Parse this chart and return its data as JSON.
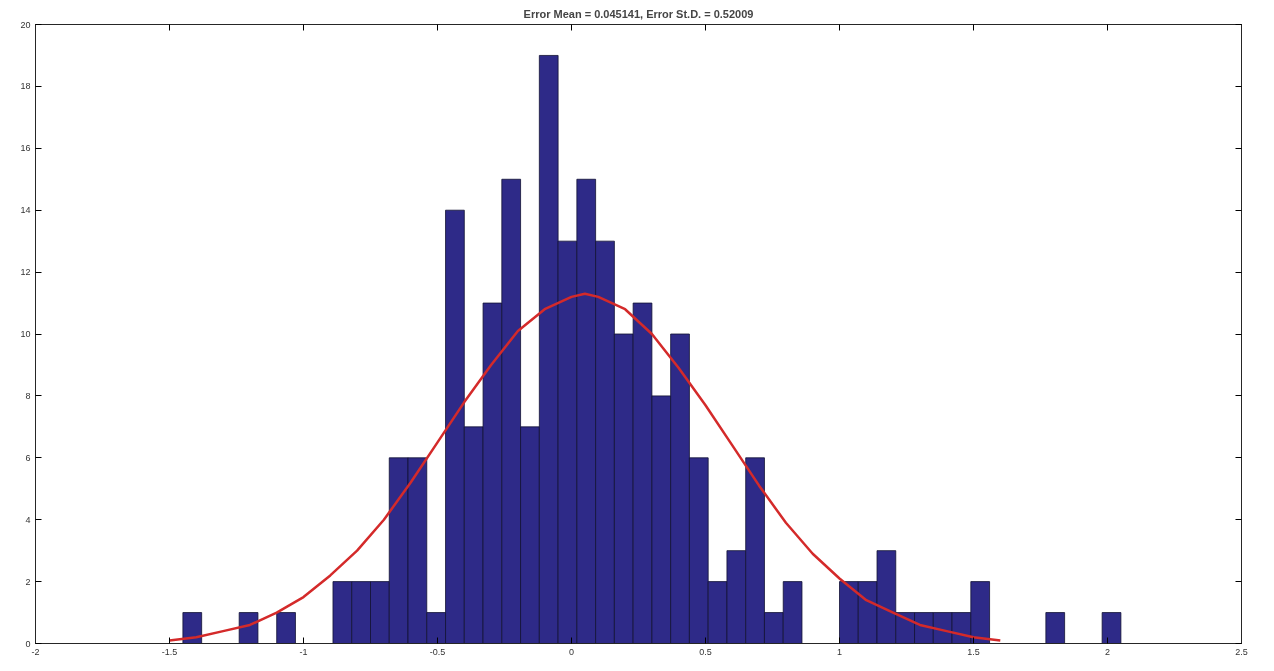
{
  "chart_data": {
    "type": "histogram",
    "title": "Error Mean = 0.045141, Error St.D. = 0.52009",
    "bins": [
      -1.45,
      -1.38,
      -1.31,
      -1.24,
      -1.17,
      -1.1,
      -1.03,
      -0.96,
      -0.89,
      -0.82,
      -0.75,
      -0.68,
      -0.61,
      -0.54,
      -0.47,
      -0.4,
      -0.33,
      -0.26,
      -0.19,
      -0.12,
      -0.05,
      0.02,
      0.09,
      0.16,
      0.23,
      0.3,
      0.37,
      0.44,
      0.51,
      0.58,
      0.65,
      0.72,
      0.79,
      0.86,
      0.93,
      1.0,
      1.07,
      1.14,
      1.21,
      1.28,
      1.35,
      1.42,
      1.49,
      1.56,
      1.63,
      1.7,
      1.77,
      1.84,
      1.91,
      1.98,
      2.05
    ],
    "series": [
      {
        "color": "#2e2a88",
        "values": [
          1,
          0,
          0,
          1,
          0,
          1,
          0,
          0,
          2,
          2,
          2,
          6,
          6,
          1,
          14,
          7,
          11,
          15,
          7,
          19,
          13,
          15,
          13,
          10,
          11,
          8,
          10,
          6,
          2,
          3,
          6,
          1,
          2,
          0,
          0,
          2,
          2,
          3,
          1,
          1,
          1,
          1,
          2,
          0,
          0,
          0,
          1,
          0,
          0,
          1
        ]
      },
      {
        "type": "line",
        "color": "#d42a2a",
        "x": [
          -1.5,
          -1.4,
          -1.3,
          -1.2,
          -1.1,
          -1.0,
          -0.9,
          -0.8,
          -0.7,
          -0.6,
          -0.5,
          -0.4,
          -0.3,
          -0.2,
          -0.1,
          0.0,
          0.05,
          0.1,
          0.2,
          0.3,
          0.4,
          0.5,
          0.6,
          0.7,
          0.8,
          0.9,
          1.0,
          1.1,
          1.2,
          1.3,
          1.4,
          1.5,
          1.6
        ],
        "values": [
          0.1,
          0.2,
          0.4,
          0.6,
          1.0,
          1.5,
          2.2,
          3.0,
          4.0,
          5.2,
          6.5,
          7.8,
          9.0,
          10.1,
          10.8,
          11.2,
          11.3,
          11.2,
          10.8,
          10.0,
          8.9,
          7.7,
          6.4,
          5.1,
          3.9,
          2.9,
          2.1,
          1.4,
          1.0,
          0.6,
          0.4,
          0.2,
          0.1
        ]
      }
    ],
    "xlim": [
      -2,
      2.5
    ],
    "ylim": [
      0,
      20
    ],
    "xticks": [
      -2,
      -1.5,
      -1,
      -0.5,
      0,
      0.5,
      1,
      1.5,
      2,
      2.5
    ],
    "yticks": [
      0,
      2,
      4,
      6,
      8,
      10,
      12,
      14,
      16,
      18,
      20
    ],
    "grid": false
  }
}
